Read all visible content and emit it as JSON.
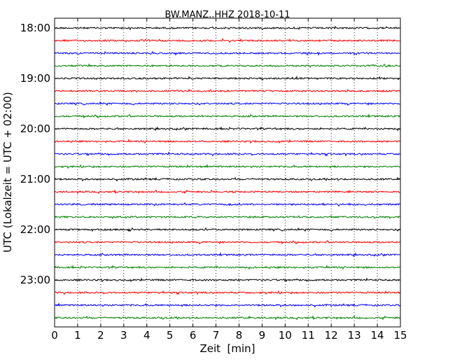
{
  "chart_data": {
    "type": "line",
    "title": "BW.MANZ..HHZ 2018-10-11",
    "xlabel": "Zeit  [min]",
    "ylabel": "UTC (Lokalzeit = UTC + 02:00)",
    "xlim": [
      0,
      15
    ],
    "x_ticks": [
      "0",
      "1",
      "2",
      "3",
      "4",
      "5",
      "6",
      "7",
      "8",
      "9",
      "10",
      "11",
      "12",
      "13",
      "14",
      "15"
    ],
    "y_ticks": [
      "18:00",
      "19:00",
      "20:00",
      "21:00",
      "22:00",
      "23:00"
    ],
    "grid": "vertical dotted",
    "colors": [
      "#000000",
      "#ff0000",
      "#0000ff",
      "#008000"
    ],
    "traces": [
      {
        "start": "18:00",
        "color": "#000000"
      },
      {
        "start": "18:15",
        "color": "#ff0000"
      },
      {
        "start": "18:30",
        "color": "#0000ff"
      },
      {
        "start": "18:45",
        "color": "#008000"
      },
      {
        "start": "19:00",
        "color": "#000000"
      },
      {
        "start": "19:15",
        "color": "#ff0000"
      },
      {
        "start": "19:30",
        "color": "#0000ff"
      },
      {
        "start": "19:45",
        "color": "#008000"
      },
      {
        "start": "20:00",
        "color": "#000000"
      },
      {
        "start": "20:15",
        "color": "#ff0000"
      },
      {
        "start": "20:30",
        "color": "#0000ff"
      },
      {
        "start": "20:45",
        "color": "#008000"
      },
      {
        "start": "21:00",
        "color": "#000000"
      },
      {
        "start": "21:15",
        "color": "#ff0000"
      },
      {
        "start": "21:30",
        "color": "#0000ff"
      },
      {
        "start": "21:45",
        "color": "#008000"
      },
      {
        "start": "22:00",
        "color": "#000000"
      },
      {
        "start": "22:15",
        "color": "#ff0000"
      },
      {
        "start": "22:30",
        "color": "#0000ff"
      },
      {
        "start": "22:45",
        "color": "#008000"
      },
      {
        "start": "23:00",
        "color": "#000000"
      },
      {
        "start": "23:15",
        "color": "#ff0000"
      },
      {
        "start": "23:30",
        "color": "#0000ff"
      },
      {
        "start": "23:45",
        "color": "#008000"
      }
    ]
  }
}
